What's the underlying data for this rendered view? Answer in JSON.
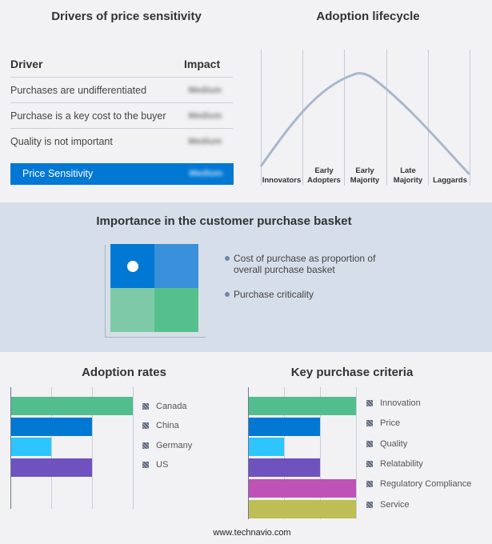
{
  "drivers": {
    "title": "Drivers of price sensitivity",
    "header_driver": "Driver",
    "header_impact": "Impact",
    "rows": [
      {
        "label": "Purchases are undifferentiated",
        "impact": "Medium"
      },
      {
        "label": "Purchase is a key cost to the buyer",
        "impact": "Medium"
      },
      {
        "label": "Quality is not important",
        "impact": "Medium"
      }
    ],
    "summary": {
      "label": "Price Sensitivity",
      "impact": "Medium"
    },
    "accent": "#0078d4"
  },
  "lifecycle": {
    "title": "Adoption lifecycle",
    "stages": [
      "Innovators",
      "Early Adopters",
      "Early Majority",
      "Late Majority",
      "Laggards"
    ]
  },
  "basket": {
    "title": "Importance in the customer purchase basket",
    "legend": [
      "Cost of purchase as proportion of overall purchase basket",
      "Purchase criticality"
    ]
  },
  "chart_data": [
    {
      "type": "bar",
      "title": "Adoption rates",
      "categories": [
        "Canada",
        "China",
        "Germany",
        "US"
      ],
      "values": [
        3,
        2,
        1,
        2
      ],
      "colors": [
        "#52be8e",
        "#0078d4",
        "#2ec5ff",
        "#6f52bd"
      ],
      "xlim": [
        0,
        3
      ]
    },
    {
      "type": "bar",
      "title": "Key purchase criteria",
      "categories": [
        "Innovation",
        "Price",
        "Quality",
        "Relatability",
        "Regulatory Compliance",
        "Service"
      ],
      "values": [
        3,
        2,
        1,
        2,
        3,
        3
      ],
      "colors": [
        "#52be8e",
        "#0078d4",
        "#2ec5ff",
        "#6f52bd",
        "#be52b6",
        "#bfbd55"
      ],
      "xlim": [
        0,
        3
      ]
    }
  ],
  "footer": "www.technavio.com"
}
